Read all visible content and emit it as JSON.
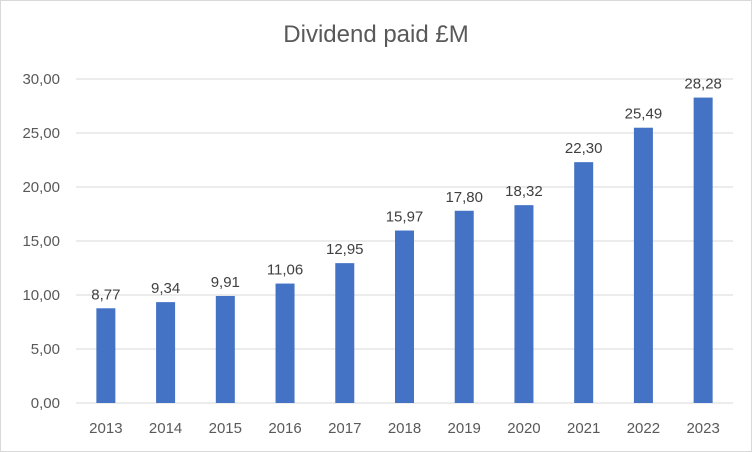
{
  "chart_data": {
    "type": "bar",
    "title": "Dividend paid £M",
    "xlabel": "",
    "ylabel": "",
    "categories": [
      "2013",
      "2014",
      "2015",
      "2016",
      "2017",
      "2018",
      "2019",
      "2020",
      "2021",
      "2022",
      "2023"
    ],
    "values": [
      8.77,
      9.34,
      9.91,
      11.06,
      12.95,
      15.97,
      17.8,
      18.32,
      22.3,
      25.49,
      28.28
    ],
    "value_labels": [
      "8,77",
      "9,34",
      "9,91",
      "11,06",
      "12,95",
      "15,97",
      "17,80",
      "18,32",
      "22,30",
      "25,49",
      "28,28"
    ],
    "y_ticks": [
      "0,00",
      "5,00",
      "10,00",
      "15,00",
      "20,00",
      "25,00",
      "30,00"
    ],
    "y_tick_values": [
      0,
      5,
      10,
      15,
      20,
      25,
      30
    ],
    "ylim": [
      0,
      30
    ],
    "grid": true,
    "legend": "none",
    "colors": {
      "bar": "#4472c4",
      "grid": "#d9d9d9",
      "text": "#595959"
    }
  }
}
